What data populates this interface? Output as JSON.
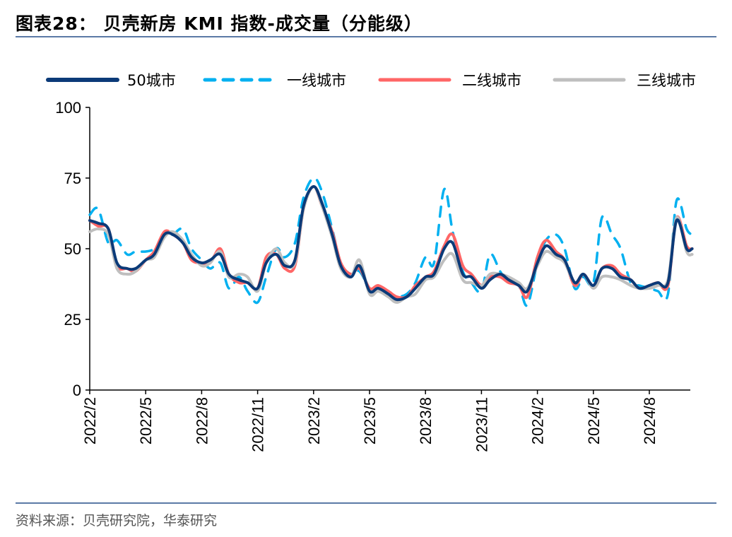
{
  "title": "图表28：  贝壳新房 KMI 指数-成交量（分能级）",
  "source": "资料来源：贝壳研究院，华泰研究",
  "chart_data": {
    "type": "line",
    "title": "",
    "xlabel": "",
    "ylabel": "",
    "ylim": [
      0,
      100
    ],
    "yticks": [
      "0",
      "25",
      "50",
      "75",
      "100"
    ],
    "xticks": [
      "2022/2",
      "2022/5",
      "2022/8",
      "2022/11",
      "2023/2",
      "2023/5",
      "2023/8",
      "2023/11",
      "2024/2",
      "2024/5",
      "2024/8"
    ],
    "legend_position": "top",
    "grid": false,
    "x": [
      "2022-02-01",
      "2022-02-15",
      "2022-03-01",
      "2022-03-15",
      "2022-04-01",
      "2022-04-15",
      "2022-05-01",
      "2022-05-15",
      "2022-06-01",
      "2022-06-15",
      "2022-07-01",
      "2022-07-15",
      "2022-08-01",
      "2022-08-15",
      "2022-09-01",
      "2022-09-15",
      "2022-10-01",
      "2022-10-15",
      "2022-11-01",
      "2022-11-15",
      "2022-12-01",
      "2022-12-15",
      "2023-01-01",
      "2023-01-15",
      "2023-02-01",
      "2023-02-15",
      "2023-03-01",
      "2023-03-15",
      "2023-04-01",
      "2023-04-15",
      "2023-05-01",
      "2023-05-15",
      "2023-06-01",
      "2023-06-15",
      "2023-07-01",
      "2023-07-15",
      "2023-08-01",
      "2023-08-15",
      "2023-09-01",
      "2023-09-15",
      "2023-10-01",
      "2023-10-15",
      "2023-11-01",
      "2023-11-15",
      "2023-12-01",
      "2023-12-15",
      "2024-01-01",
      "2024-01-15",
      "2024-02-01",
      "2024-02-15",
      "2024-03-01",
      "2024-03-15",
      "2024-04-01",
      "2024-04-15",
      "2024-05-01",
      "2024-05-15",
      "2024-06-01",
      "2024-06-15",
      "2024-07-01",
      "2024-07-15",
      "2024-08-01",
      "2024-08-15",
      "2024-09-01",
      "2024-09-15",
      "2024-10-01",
      "2024-10-10"
    ],
    "series": [
      {
        "name": "50城市",
        "color": "#0b3a78",
        "style": "solid",
        "values": [
          60,
          59,
          57,
          45,
          43,
          43,
          46,
          48,
          55,
          55,
          52,
          47,
          45,
          46,
          48,
          41,
          39,
          38,
          36,
          45,
          48,
          44,
          46,
          65,
          72,
          66,
          55,
          44,
          40,
          44,
          35,
          36,
          34,
          32,
          33,
          36,
          40,
          41,
          50,
          52,
          41,
          40,
          36,
          39,
          41,
          39,
          37,
          35,
          45,
          51,
          48,
          46,
          38,
          41,
          37,
          43,
          43,
          40,
          39,
          36,
          37,
          38,
          38,
          60,
          50,
          50
        ]
      },
      {
        "name": "一线城市",
        "color": "#00b0f0",
        "style": "dashed",
        "values": [
          62,
          64,
          52,
          53,
          48,
          49,
          49,
          50,
          54,
          55,
          57,
          50,
          46,
          43,
          45,
          36,
          40,
          35,
          31,
          40,
          50,
          47,
          52,
          68,
          75,
          70,
          57,
          45,
          41,
          42,
          36,
          35,
          34,
          33,
          34,
          38,
          47,
          45,
          71,
          56,
          42,
          38,
          35,
          48,
          42,
          38,
          37,
          30,
          45,
          53,
          55,
          50,
          36,
          40,
          38,
          61,
          55,
          50,
          38,
          37,
          36,
          35,
          34,
          67,
          57,
          55
        ]
      },
      {
        "name": "二线城市",
        "color": "#ff6666",
        "style": "solid",
        "values": [
          60,
          58,
          57,
          44,
          43,
          42,
          46,
          49,
          56,
          55,
          52,
          46,
          45,
          45,
          50,
          41,
          38,
          38,
          36,
          47,
          48,
          43,
          44,
          64,
          72,
          65,
          56,
          45,
          41,
          43,
          36,
          37,
          35,
          33,
          33,
          37,
          40,
          42,
          51,
          55,
          44,
          41,
          37,
          40,
          40,
          38,
          37,
          33,
          47,
          53,
          49,
          46,
          37,
          41,
          37,
          43,
          44,
          41,
          39,
          36,
          37,
          38,
          37,
          61,
          51,
          50
        ]
      },
      {
        "name": "三线城市",
        "color": "#bfbfbf",
        "style": "solid",
        "values": [
          56,
          57,
          55,
          43,
          41,
          42,
          46,
          47,
          54,
          56,
          53,
          48,
          44,
          45,
          49,
          40,
          41,
          40,
          35,
          45,
          50,
          45,
          45,
          64,
          72,
          65,
          54,
          43,
          40,
          46,
          34,
          35,
          33,
          31,
          33,
          34,
          39,
          40,
          46,
          48,
          39,
          38,
          37,
          41,
          41,
          40,
          38,
          36,
          44,
          49,
          47,
          45,
          38,
          41,
          36,
          40,
          40,
          39,
          37,
          36,
          36,
          37,
          39,
          61,
          49,
          48
        ]
      }
    ]
  }
}
